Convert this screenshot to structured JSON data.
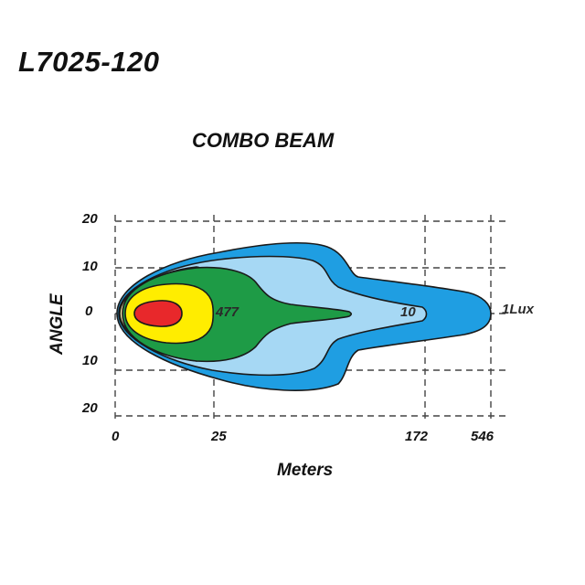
{
  "header": {
    "model": "L7025-120",
    "beam_type": "COMBO BEAM"
  },
  "axes": {
    "y_title": "ANGLE",
    "x_title": "Meters",
    "y_ticks_top": [
      "20",
      "10",
      "0"
    ],
    "y_ticks_bottom": [
      "10",
      "20"
    ],
    "x_ticks": [
      "0",
      "25",
      "172",
      "546"
    ]
  },
  "lux_labels": {
    "inner": "477",
    "mid": "10",
    "outer": "1Lux"
  },
  "colors": {
    "zone_outer": "#1f9ee2",
    "zone_light": "#a6d8f4",
    "zone_green": "#1e9b46",
    "zone_yellow": "#ffed00",
    "zone_red": "#e8282b",
    "zone_cream": "#f4e6a6"
  }
}
